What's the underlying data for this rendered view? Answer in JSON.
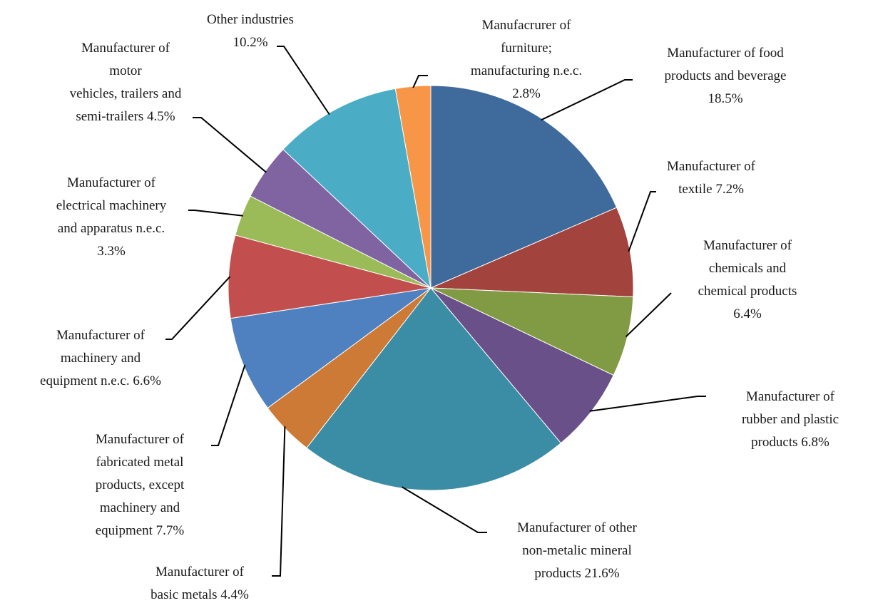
{
  "chart_data": {
    "type": "pie",
    "start_angle_deg": 0,
    "direction": "clockwise",
    "legend": "none",
    "slices": [
      {
        "label": "Manufacturer of food products and beverage",
        "value": 18.5,
        "color": "#3F6A9C",
        "label_lines": [
          "Manufacturer of food",
          "products and beverage",
          "18.5%"
        ]
      },
      {
        "label": "Manufacturer of textile",
        "value": 7.2,
        "color": "#A3433D",
        "label_lines": [
          "Manufacturer of",
          "textile 7.2%"
        ]
      },
      {
        "label": "Manufacturer of chemicals and chemical products",
        "value": 6.4,
        "color": "#819A44",
        "label_lines": [
          "Manufacturer of",
          "chemicals and",
          "chemical products",
          "6.4%"
        ]
      },
      {
        "label": "Manufacturer of rubber and plastic products",
        "value": 6.8,
        "color": "#6A5088",
        "label_lines": [
          "Manufacturer of",
          "rubber and plastic",
          "products 6.8%"
        ]
      },
      {
        "label": "Manufacturer of other non-metalic mineral products",
        "value": 21.6,
        "color": "#3B8DA5",
        "label_lines": [
          "Manufacturer of other",
          "non-metalic mineral",
          "products 21.6%"
        ]
      },
      {
        "label": "Manufacturer of basic metals",
        "value": 4.4,
        "color": "#CC7A36",
        "label_lines": [
          "Manufacturer  of",
          "basic metals 4.4%"
        ]
      },
      {
        "label": "Manufacturer of fabricated metal products, except machinery and equipment",
        "value": 7.7,
        "color": "#4F81C0",
        "label_lines": [
          "Manufacturer of",
          "fabricated metal",
          "products, except",
          "machinery and",
          "equipment 7.7%"
        ]
      },
      {
        "label": "Manufacturer of machinery and equipment n.e.c.",
        "value": 6.6,
        "color": "#C24F4D",
        "label_lines": [
          "Manufacturer of",
          "machinery and",
          "equipment n.e.c. 6.6%"
        ]
      },
      {
        "label": "Manufacturer of electrical machinery and apparatus n.e.c.",
        "value": 3.3,
        "color": "#9BBB59",
        "label_lines": [
          "Manufacturer of",
          "electrical machinery",
          "and apparatus n.e.c.",
          "3.3%"
        ]
      },
      {
        "label": "Manufacturer of motor vehicles, trailers and semi-trailers",
        "value": 4.5,
        "color": "#8064A2",
        "label_lines": [
          "Manufacturer of",
          "motor",
          "vehicles, trailers and",
          "semi-trailers 4.5%"
        ]
      },
      {
        "label": "Other industries",
        "value": 10.2,
        "color": "#4BACC6",
        "label_lines": [
          "Other industries",
          "10.2%"
        ]
      },
      {
        "label": "Manufacrurer of furniture; manufacturing n.e.c.",
        "value": 2.8,
        "color": "#F79646",
        "label_lines": [
          "Manufacrurer of",
          "furniture;",
          "manufacturing n.e.c.",
          "2.8%"
        ]
      }
    ]
  }
}
